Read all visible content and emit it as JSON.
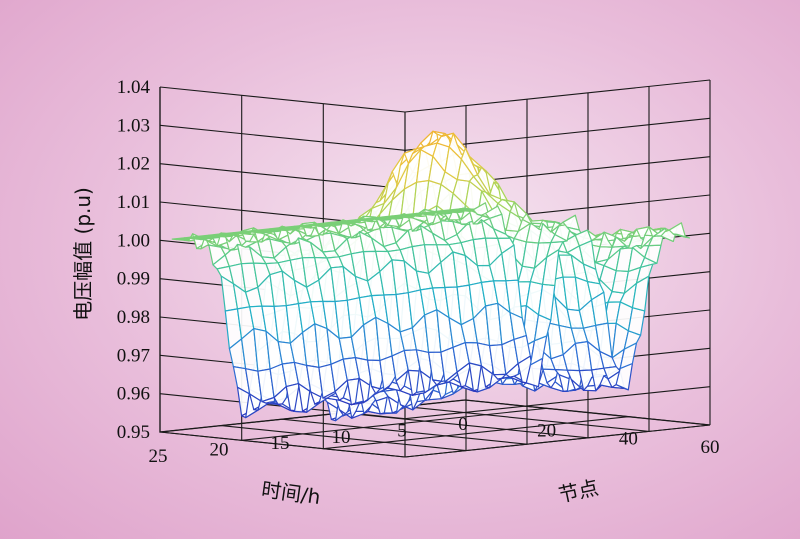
{
  "chart_data": {
    "type": "surface",
    "zlabel": "电压幅值 (p.u)",
    "xlabel": "节点",
    "ylabel": "时间/h",
    "zlim": [
      0.95,
      1.04
    ],
    "xlim": [
      0,
      60
    ],
    "ylim": [
      0,
      25
    ],
    "z_ticks": [
      "0.95",
      "0.96",
      "0.97",
      "0.98",
      "0.99",
      "1.00",
      "1.01",
      "1.02",
      "1.03",
      "1.04"
    ],
    "x_ticks": [
      "0",
      "20",
      "40",
      "60"
    ],
    "y_ticks": [
      "25",
      "20",
      "15",
      "10",
      "5",
      "0"
    ],
    "grid": true,
    "colormap": [
      "#2a2ab8",
      "#2f78d8",
      "#22b2c6",
      "#4cc893",
      "#a9d65a",
      "#ecc63f",
      "#f2a028"
    ],
    "surface_summary": {
      "node_samples": [
        0,
        5,
        10,
        15,
        18,
        20,
        25,
        30,
        33,
        35,
        38,
        40,
        45,
        50,
        55
      ],
      "hour_samples": [
        0,
        4,
        8,
        12,
        16,
        20,
        24
      ],
      "min_voltage": 0.954,
      "max_voltage": 1.033
    }
  }
}
